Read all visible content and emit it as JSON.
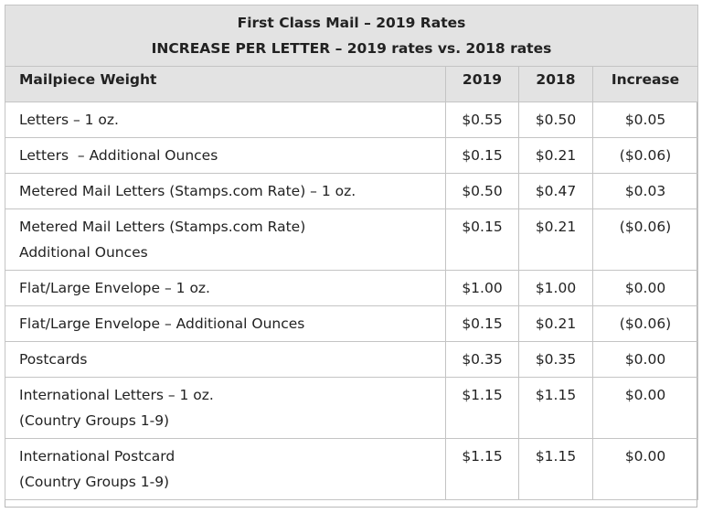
{
  "table": {
    "title": "First Class Mail – 2019 Rates",
    "subtitle": "INCREASE PER LETTER – 2019 rates vs. 2018 rates",
    "headers": {
      "weight": "Mailpiece Weight",
      "y2019": "2019",
      "y2018": "2018",
      "increase": "Increase"
    },
    "rows": [
      {
        "line1": "Letters – 1 oz.",
        "line2": "",
        "y2019": "$0.55",
        "y2018": "$0.50",
        "increase": "$0.05"
      },
      {
        "line1": "Letters  – Additional Ounces",
        "line2": "",
        "y2019": "$0.15",
        "y2018": "$0.21",
        "increase": "($0.06)"
      },
      {
        "line1": "Metered Mail Letters (Stamps.com Rate) – 1 oz.",
        "line2": "",
        "y2019": "$0.50",
        "y2018": "$0.47",
        "increase": "$0.03"
      },
      {
        "line1": "Metered Mail Letters (Stamps.com Rate)",
        "line2": "Additional Ounces",
        "y2019": "$0.15",
        "y2018": "$0.21",
        "increase": "($0.06)"
      },
      {
        "line1": "Flat/Large Envelope – 1 oz.",
        "line2": "",
        "y2019": "$1.00",
        "y2018": "$1.00",
        "increase": "$0.00"
      },
      {
        "line1": "Flat/Large Envelope – Additional Ounces",
        "line2": "",
        "y2019": "$0.15",
        "y2018": "$0.21",
        "increase": "($0.06)"
      },
      {
        "line1": "Postcards",
        "line2": "",
        "y2019": "$0.35",
        "y2018": "$0.35",
        "increase": "$0.00"
      },
      {
        "line1": "International Letters – 1 oz.",
        "line2": "(Country Groups 1-9)",
        "y2019": "$1.15",
        "y2018": "$1.15",
        "increase": "$0.00"
      },
      {
        "line1": "International Postcard",
        "line2": "(Country Groups 1-9)",
        "y2019": "$1.15",
        "y2018": "$1.15",
        "increase": "$0.00"
      }
    ]
  }
}
